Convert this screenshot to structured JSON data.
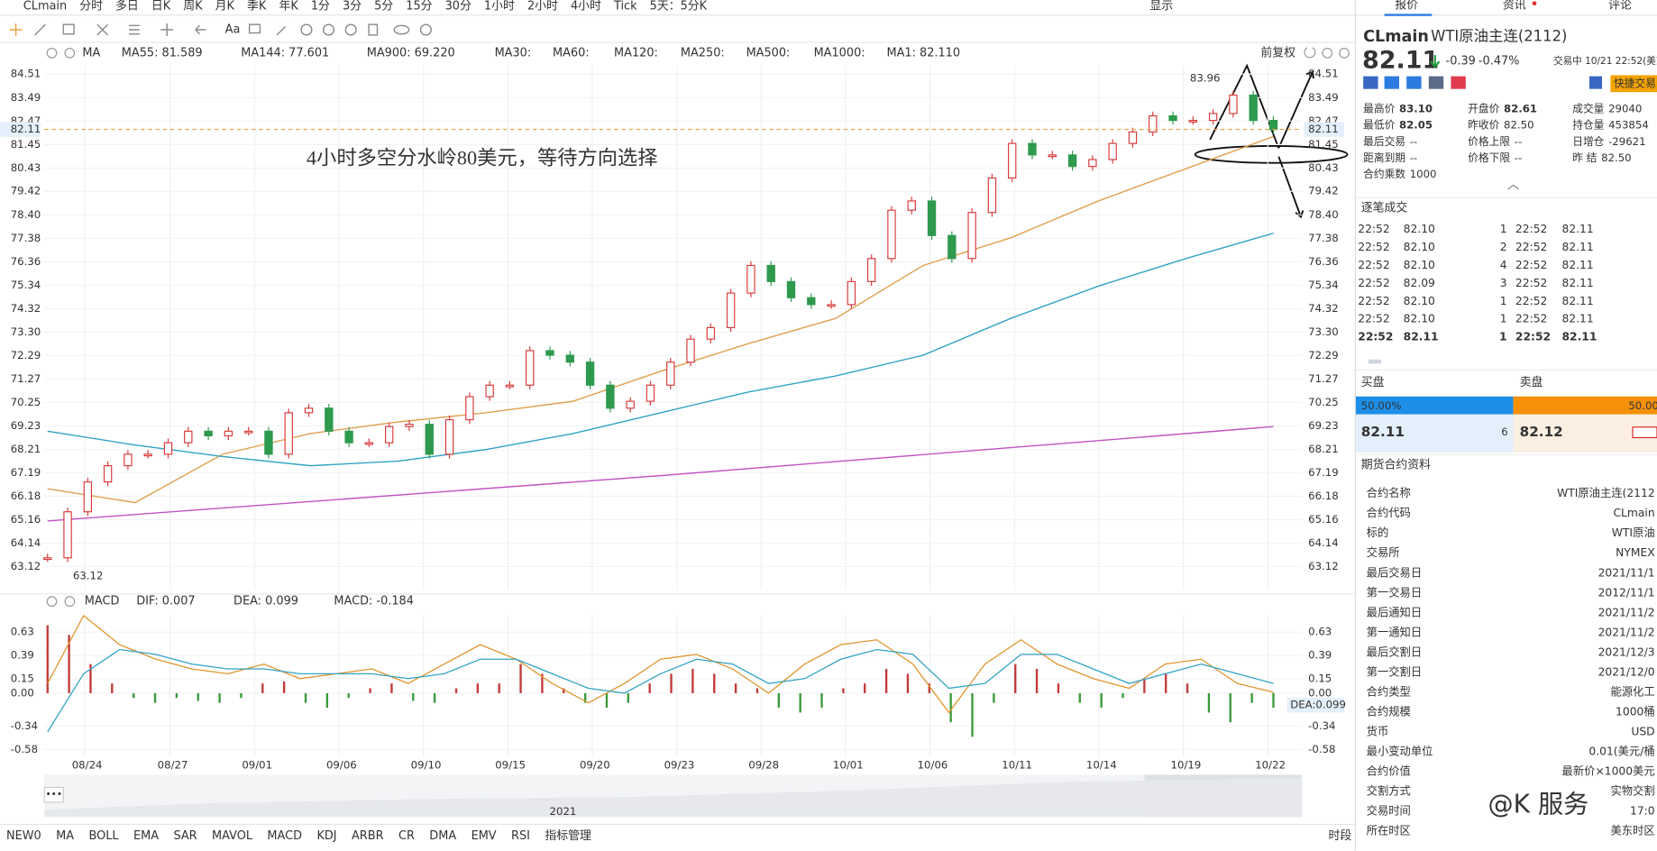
{
  "toolbar": {
    "symbol": "CLmain",
    "periods_before": [
      "分时",
      "多日",
      "日K",
      "周K",
      "月K",
      "季K",
      "年K",
      "1分",
      "3分",
      "5分",
      "15分",
      "30分",
      "1小时",
      "2小时"
    ],
    "active_period": "4小时",
    "periods_after": [
      "Tick",
      "5天：5分K"
    ],
    "display_menu": "显示"
  },
  "ma_legend": {
    "label": "MA",
    "items": [
      {
        "text": "MA55: 81.589",
        "color": "#e0952f"
      },
      {
        "text": "MA144: 77.601",
        "color": "#33a3c4"
      },
      {
        "text": "MA900: 69.220",
        "color": "#c253c2"
      },
      {
        "text": "MA30:",
        "color": "#b9d6e4"
      },
      {
        "text": "MA60:",
        "color": "#b9e0e4"
      },
      {
        "text": "MA120:",
        "color": "#f2c2c2"
      },
      {
        "text": "MA250:",
        "color": "#b8e2f2"
      },
      {
        "text": "MA500:",
        "color": "#f2dcb8"
      },
      {
        "text": "MA1000:",
        "color": "#c8c8e0"
      },
      {
        "text": "MA1: 82.110",
        "color": "#555555"
      }
    ],
    "adjust": "前复权"
  },
  "price_chart": {
    "ylim": [
      63.12,
      84.51
    ],
    "yticks": [
      84.51,
      83.49,
      82.47,
      81.45,
      80.43,
      79.42,
      {
        "value": 78.4,
        "label": "78.40"
      },
      77.38,
      76.36,
      75.34,
      74.32,
      {
        "value": 73.3,
        "label": "73.30"
      },
      72.29,
      71.27,
      70.25,
      69.23,
      68.21,
      67.19,
      66.18,
      65.16,
      64.14,
      63.12
    ],
    "x_labels": [
      "08/24",
      "08/27",
      "09/01",
      "09/06",
      "09/10",
      "09/15",
      "09/20",
      "09/23",
      "09/28",
      "10/01",
      "10/06",
      "10/11",
      "10/14",
      "10/19",
      "10/22"
    ],
    "closes": [
      63.5,
      65.5,
      66.8,
      67.5,
      68,
      68,
      68.5,
      69,
      68.8,
      69,
      69,
      68,
      69.8,
      70,
      69,
      68.5,
      68.5,
      69.2,
      69.3,
      68,
      69.5,
      70.5,
      71,
      71,
      72.5,
      72.3,
      72,
      71,
      70,
      70.3,
      71,
      72,
      73,
      73.5,
      75,
      76.2,
      75.5,
      74.8,
      74.5,
      74.5,
      75.5,
      76.5,
      78.6,
      79,
      77.5,
      76.5,
      78.5,
      80,
      81.5,
      81,
      81,
      80.5,
      80.8,
      81.5,
      82,
      82.7,
      82.5,
      82.5,
      82.8,
      83.6,
      82.5,
      82.1
    ],
    "ma_lines": [
      {
        "color": "#e0a050",
        "values": [
          66.5,
          65.9,
          68.0,
          68.9,
          69.4,
          69.8,
          70.3,
          71.6,
          72.8,
          73.9,
          76.2,
          77.4,
          79.0,
          80.4,
          81.8
        ]
      },
      {
        "color": "#33a3c4",
        "values": [
          69.0,
          68.4,
          67.9,
          67.5,
          67.7,
          68.2,
          68.9,
          69.8,
          70.7,
          71.4,
          72.3,
          73.9,
          75.3,
          76.5,
          77.6
        ]
      },
      {
        "color": "#c253c2",
        "values": [
          65.1,
          67.07,
          69.2
        ]
      }
    ],
    "current_price": 82.11,
    "high_label": 83.96,
    "low_label": 63.12,
    "annotation": "4小时多空分水岭80美元，等待方向选择"
  },
  "macd": {
    "label": "MACD",
    "legend": [
      {
        "text": "DIF: 0.007",
        "color": "#e0952f"
      },
      {
        "text": "DEA: 0.099",
        "color": "#33a3c4"
      },
      {
        "text": "MACD: -0.184",
        "color": "#c253c2"
      }
    ],
    "ylim": [
      -0.58,
      0.63
    ],
    "yticks": [
      0.63,
      0.39,
      0.15,
      {
        "value": 0,
        "label": "0.00"
      },
      -0.34,
      -0.58
    ],
    "histogram": [
      0.7,
      0.6,
      0.3,
      0.1,
      -0.05,
      -0.1,
      -0.05,
      -0.08,
      -0.1,
      -0.05,
      0.1,
      0.12,
      -0.1,
      -0.15,
      -0.05,
      0.05,
      0.1,
      -0.08,
      -0.1,
      0.05,
      0.1,
      0.1,
      0.3,
      0.2,
      0.05,
      -0.1,
      -0.15,
      -0.1,
      0.1,
      0.2,
      0.25,
      0.2,
      0.1,
      0.05,
      -0.15,
      -0.2,
      -0.15,
      0.05,
      0.1,
      0.25,
      0.2,
      0.1,
      -0.3,
      -0.45,
      -0.1,
      0.3,
      0.25,
      0.1,
      -0.1,
      -0.15,
      -0.05,
      0.15,
      0.2,
      0.1,
      -0.2,
      -0.3,
      -0.1,
      -0.15
    ],
    "dif": [
      0.1,
      0.8,
      0.5,
      0.35,
      0.25,
      0.2,
      0.3,
      0.15,
      0.2,
      0.25,
      0.1,
      0.3,
      0.5,
      0.35,
      0.1,
      -0.1,
      0.1,
      0.35,
      0.4,
      0.25,
      0,
      0.3,
      0.5,
      0.55,
      0.3,
      -0.2,
      0.3,
      0.55,
      0.3,
      0.15,
      0.05,
      0.3,
      0.35,
      0.1,
      0.01
    ],
    "dea": [
      -0.4,
      0.2,
      0.45,
      0.4,
      0.3,
      0.25,
      0.25,
      0.2,
      0.2,
      0.2,
      0.15,
      0.2,
      0.35,
      0.35,
      0.2,
      0.05,
      0,
      0.2,
      0.35,
      0.3,
      0.1,
      0.15,
      0.35,
      0.45,
      0.4,
      0.05,
      0.1,
      0.4,
      0.4,
      0.25,
      0.1,
      0.2,
      0.3,
      0.2,
      0.1
    ],
    "dea_tag": "DEA:0.099"
  },
  "timeline_year": "2021",
  "indicators": [
    {
      "text": "NEW0",
      "active": false
    },
    {
      "text": "MA",
      "active": true
    },
    {
      "text": "BOLL",
      "active": false
    },
    {
      "text": "EMA",
      "active": false
    },
    {
      "text": "SAR",
      "active": false
    },
    {
      "text": "MAVOL",
      "active": false
    },
    {
      "text": "MACD",
      "active": true
    },
    {
      "text": "KDJ",
      "active": false
    },
    {
      "text": "ARBR",
      "active": false
    },
    {
      "text": "CR",
      "active": false
    },
    {
      "text": "DMA",
      "active": false
    },
    {
      "text": "EMV",
      "active": false
    },
    {
      "text": "RSI",
      "active": false
    },
    {
      "text": "指标管理",
      "active": true
    }
  ],
  "period_button": "时段",
  "quote": {
    "tabs": [
      "报价",
      "资讯",
      "评论"
    ],
    "symbol": "CLmain",
    "name": "WTI原油主连(2112)",
    "price": "82.11",
    "change": "-0.39",
    "change_pct": "-0.47%",
    "status": "交易中 10/21 22:52(美东",
    "quick_trade": "快捷交易",
    "stats": [
      [
        {
          "label": "最高价",
          "value": "83.10",
          "color": "#d4262a"
        },
        {
          "label": "开盘价",
          "value": "82.61",
          "color": "#d4262a"
        },
        {
          "label": "成交量",
          "value": "29040",
          "color": "#333333"
        }
      ],
      [
        {
          "label": "最低价",
          "value": "82.05",
          "color": "#1a9a3c"
        },
        {
          "label": "昨收价",
          "value": "82.50",
          "color": "#333333"
        },
        {
          "label": "持仓量",
          "value": "453854",
          "color": "#333333"
        }
      ],
      [
        {
          "label": "最后交易",
          "value": "--",
          "color": "#333333"
        },
        {
          "label": "价格上限",
          "value": "--",
          "color": "#333333"
        },
        {
          "label": "日增仓",
          "value": "-29621",
          "color": "#333333"
        }
      ],
      [
        {
          "label": "距离到期",
          "value": "--",
          "color": "#333333"
        },
        {
          "label": "价格下限",
          "value": "--",
          "color": "#333333"
        },
        {
          "label": "昨 结",
          "value": "82.50",
          "color": "#333333"
        }
      ],
      [
        {
          "label": "合约乘数",
          "value": "1000",
          "color": "#333333"
        }
      ]
    ],
    "trades_title": "逐笔成交",
    "trades": [
      [
        "22:52",
        "82.10",
        "1",
        "22:52",
        "82.11"
      ],
      [
        "22:52",
        "82.10",
        "2",
        "22:52",
        "82.11"
      ],
      [
        "22:52",
        "82.10",
        "4",
        "22:52",
        "82.11"
      ],
      [
        "22:52",
        "82.09",
        "3",
        "22:52",
        "82.11"
      ],
      [
        "22:52",
        "82.10",
        "1",
        "22:52",
        "82.11"
      ],
      [
        "22:52",
        "82.10",
        "1",
        "22:52",
        "82.11"
      ],
      [
        "22:52",
        "82.11",
        "1",
        "22:52",
        "82.11"
      ]
    ],
    "book": {
      "bid_label": "买盘",
      "ask_label": "卖盘",
      "bid_pct": "50.00%",
      "ask_pct": "50.00",
      "bid_price": "82.11",
      "bid_size": "6",
      "ask_price": "82.12"
    },
    "contract_title": "期货合约资料",
    "contract": [
      [
        "合约名称",
        "WTI原油主连(2112"
      ],
      [
        "合约代码",
        "CLmain"
      ],
      [
        "标的",
        "WTI原油"
      ],
      [
        "交易所",
        "NYMEX"
      ],
      [
        "最后交易日",
        "2021/11/1"
      ],
      [
        "第一交易日",
        "2012/11/1"
      ],
      [
        "最后通知日",
        "2021/11/2"
      ],
      [
        "第一通知日",
        "2021/11/2"
      ],
      [
        "最后交割日",
        "2021/12/3"
      ],
      [
        "第一交割日",
        "2021/12/0"
      ],
      [
        "合约类型",
        "能源化工"
      ],
      [
        "合约规模",
        "1000桶"
      ],
      [
        "货币",
        "USD"
      ],
      [
        "最小变动单位",
        "0.01(美元/桶"
      ],
      [
        "合约价值",
        "最新价×1000美元"
      ],
      [
        "交割方式",
        "实物交割"
      ],
      [
        "交易时间",
        "17:0"
      ],
      [
        "所在时区",
        "美东时区"
      ]
    ]
  },
  "watermark": "@K 服务"
}
